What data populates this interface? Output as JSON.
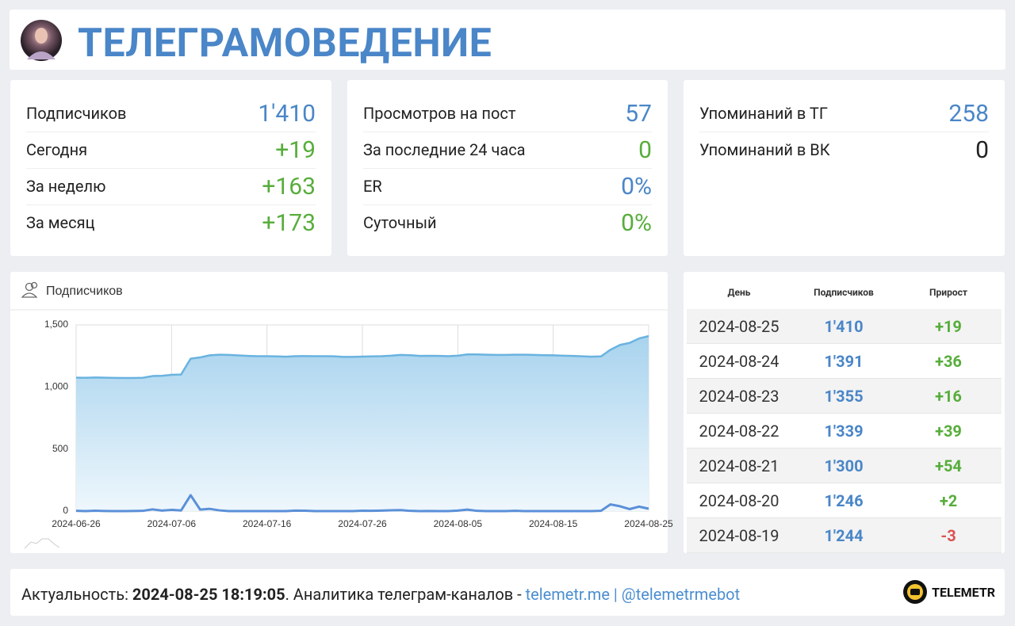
{
  "header": {
    "title": "ТЕЛЕГРАМОВЕДЕНИЕ"
  },
  "stats": [
    {
      "rows": [
        {
          "label": "Подписчиков",
          "value": "1'410"
        },
        {
          "label": "Сегодня",
          "value": "+19"
        },
        {
          "label": "За неделю",
          "value": "+163"
        },
        {
          "label": "За месяц",
          "value": "+173"
        }
      ]
    },
    {
      "rows": [
        {
          "label": "Просмотров на пост",
          "value": "57"
        },
        {
          "label": "За последние 24 часа",
          "value": "0"
        },
        {
          "label": "ER",
          "value": "0%"
        },
        {
          "label": "Суточный",
          "value": "0%"
        }
      ]
    },
    {
      "rows": [
        {
          "label": "Упоминаний в ТГ",
          "value": "258"
        },
        {
          "label": "Упоминаний в ВК",
          "value": "0"
        }
      ]
    }
  ],
  "chart_data": {
    "type": "area",
    "title": "Подписчиков",
    "x": [
      "2024-06-26",
      "2024-06-27",
      "2024-06-28",
      "2024-06-29",
      "2024-06-30",
      "2024-07-01",
      "2024-07-02",
      "2024-07-03",
      "2024-07-04",
      "2024-07-05",
      "2024-07-06",
      "2024-07-07",
      "2024-07-08",
      "2024-07-09",
      "2024-07-10",
      "2024-07-11",
      "2024-07-12",
      "2024-07-13",
      "2024-07-14",
      "2024-07-15",
      "2024-07-16",
      "2024-07-17",
      "2024-07-18",
      "2024-07-19",
      "2024-07-20",
      "2024-07-21",
      "2024-07-22",
      "2024-07-23",
      "2024-07-24",
      "2024-07-25",
      "2024-07-26",
      "2024-07-27",
      "2024-07-28",
      "2024-07-29",
      "2024-07-30",
      "2024-07-31",
      "2024-08-01",
      "2024-08-02",
      "2024-08-03",
      "2024-08-04",
      "2024-08-05",
      "2024-08-06",
      "2024-08-07",
      "2024-08-08",
      "2024-08-09",
      "2024-08-10",
      "2024-08-11",
      "2024-08-12",
      "2024-08-13",
      "2024-08-14",
      "2024-08-15",
      "2024-08-16",
      "2024-08-17",
      "2024-08-18",
      "2024-08-19",
      "2024-08-20",
      "2024-08-21",
      "2024-08-22",
      "2024-08-23",
      "2024-08-24",
      "2024-08-25"
    ],
    "series": [
      {
        "color": "#6ab3e0",
        "values": [
          1075,
          1074,
          1076,
          1075,
          1073,
          1072,
          1072,
          1074,
          1088,
          1090,
          1098,
          1100,
          1228,
          1238,
          1255,
          1260,
          1258,
          1254,
          1250,
          1248,
          1248,
          1246,
          1244,
          1248,
          1249,
          1248,
          1248,
          1247,
          1242,
          1242,
          1245,
          1246,
          1248,
          1252,
          1258,
          1256,
          1250,
          1251,
          1250,
          1248,
          1252,
          1262,
          1262,
          1260,
          1258,
          1258,
          1260,
          1260,
          1258,
          1256,
          1255,
          1252,
          1250,
          1247,
          1244,
          1246,
          1300,
          1339,
          1355,
          1391,
          1410
        ]
      },
      {
        "color": "#5b90d8",
        "values": [
          2,
          0,
          3,
          1,
          0,
          0,
          1,
          2,
          14,
          4,
          10,
          5,
          128,
          12,
          18,
          6,
          0,
          0,
          0,
          0,
          0,
          0,
          0,
          4,
          3,
          0,
          0,
          0,
          0,
          0,
          3,
          2,
          4,
          6,
          8,
          2,
          0,
          1,
          0,
          0,
          4,
          12,
          2,
          0,
          0,
          0,
          2,
          0,
          0,
          0,
          0,
          0,
          0,
          0,
          0,
          2,
          54,
          39,
          16,
          36,
          19
        ]
      }
    ],
    "xlim": [
      "2024-06-26",
      "2024-08-25"
    ],
    "xticks": [
      "2024-06-26",
      "2024-07-06",
      "2024-07-16",
      "2024-07-26",
      "2024-08-05",
      "2024-08-15",
      "2024-08-25"
    ],
    "ylim": [
      0,
      1500
    ],
    "yticks": [
      0,
      500,
      {
        "value": 1000,
        "label": "1,000"
      },
      {
        "value": 1500,
        "label": "1,500"
      }
    ],
    "grid": true
  },
  "table": {
    "headers": [
      "День",
      "Подписчиков",
      "Прирост"
    ],
    "rows": [
      [
        "2024-08-25",
        "1'410",
        "+19"
      ],
      [
        "2024-08-24",
        "1'391",
        "+36"
      ],
      [
        "2024-08-23",
        "1'355",
        "+16"
      ],
      [
        "2024-08-22",
        "1'339",
        "+39"
      ],
      [
        "2024-08-21",
        "1'300",
        "+54"
      ],
      [
        "2024-08-20",
        "1'246",
        "+2"
      ],
      [
        "2024-08-19",
        "1'244",
        "-3"
      ]
    ]
  },
  "footer": {
    "label": "Актуальность:",
    "timestamp": "2024-08-25 18:19:05",
    "text": ". Аналитика телеграм-каналов -",
    "link1": "telemetr.me",
    "separator": "|",
    "link2": "@telemetrmebot",
    "logo": "TELEMETR"
  }
}
